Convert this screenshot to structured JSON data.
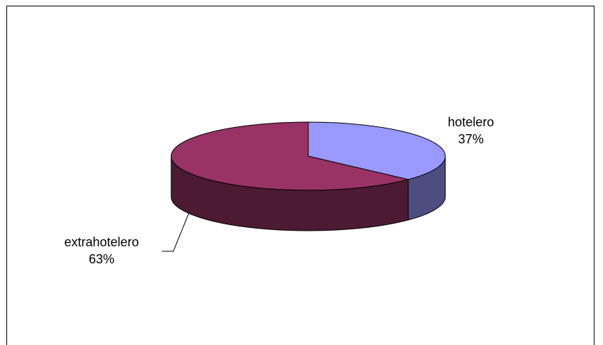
{
  "chart_data": {
    "type": "pie",
    "style": "3d",
    "slices": [
      {
        "label": "hotelero",
        "value": 37,
        "percent_label": "37%",
        "top_color": "#9999FF",
        "side_color": "#4D4D80"
      },
      {
        "label": "extrahotelero",
        "value": 63,
        "percent_label": "63%",
        "top_color": "#993366",
        "side_color": "#4D1A33"
      }
    ],
    "legend": "none",
    "title": ""
  }
}
